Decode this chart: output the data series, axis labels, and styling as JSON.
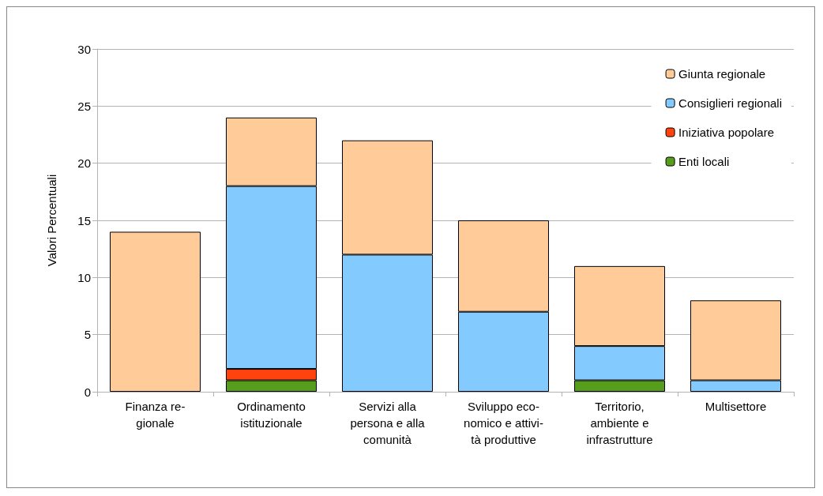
{
  "chart_data": {
    "type": "bar",
    "stacked": true,
    "ylabel": "Valori Percentuali",
    "categories": [
      "Finanza re-\ngionale",
      "Ordinamento\nistituzionale",
      "Servizi alla\npersona e alla\ncomunità",
      "Sviluppo eco-\nnomico e attivi-\ntà produttive",
      "Territorio,\nambiente e\ninfrastrutture",
      "Multisettore"
    ],
    "series": [
      {
        "name": "Enti locali",
        "color": "#579d1c",
        "values": [
          null,
          1,
          null,
          null,
          1,
          null
        ]
      },
      {
        "name": "Iniziativa popolare",
        "color": "#ff420e",
        "values": [
          null,
          1,
          null,
          null,
          null,
          null
        ]
      },
      {
        "name": "Consiglieri regionali",
        "color": "#83caff",
        "values": [
          null,
          16,
          12,
          7,
          3,
          1
        ]
      },
      {
        "name": "Giunta regionale",
        "color": "#ffcc99",
        "values": [
          14,
          6,
          10,
          8,
          7,
          7
        ]
      }
    ],
    "ylim": [
      0,
      30
    ],
    "yticks": [
      0,
      5,
      10,
      15,
      20,
      25,
      30
    ],
    "grid": "y",
    "legend": "top right"
  }
}
